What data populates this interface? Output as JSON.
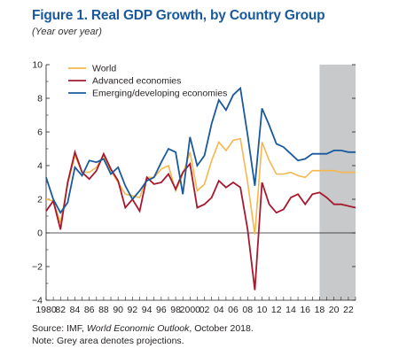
{
  "title": "Figure 1. Real GDP Growth, by Country Group",
  "subtitle": "(Year over year)",
  "source": {
    "prefix": "Source: IMF, ",
    "publication": "World Economic Outlook",
    "suffix": ", October 2018."
  },
  "note": "Note: Grey area denotes projections.",
  "colors": {
    "world": "#f5b74e",
    "advanced": "#a6192e",
    "emerging": "#1a5a9c",
    "projection": "#c8c9cb"
  },
  "chart_data": {
    "type": "line",
    "xlim": [
      1980,
      2023
    ],
    "ylim": [
      -4,
      10
    ],
    "yticks": [
      -4,
      -2,
      0,
      2,
      4,
      6,
      8,
      10
    ],
    "ytick_labels": [
      "−4",
      "−2",
      "0",
      "2",
      "4",
      "6",
      "8",
      "10"
    ],
    "xticks": [
      1980,
      1982,
      1984,
      1986,
      1988,
      1990,
      1992,
      1994,
      1996,
      1998,
      2000,
      2002,
      2004,
      2006,
      2008,
      2010,
      2012,
      2014,
      2016,
      2018,
      2020,
      2022
    ],
    "xtick_labels": [
      "1980",
      "82",
      "84",
      "86",
      "88",
      "90",
      "92",
      "94",
      "96",
      "98",
      "2000",
      "02",
      "04",
      "06",
      "08",
      "10",
      "12",
      "14",
      "16",
      "18",
      "20",
      "22"
    ],
    "projection_start": 2018,
    "legend_position": "top-left",
    "x": [
      1980,
      1981,
      1982,
      1983,
      1984,
      1985,
      1986,
      1987,
      1988,
      1989,
      1990,
      1991,
      1992,
      1993,
      1994,
      1995,
      1996,
      1997,
      1998,
      1999,
      2000,
      2001,
      2002,
      2003,
      2004,
      2005,
      2006,
      2007,
      2008,
      2009,
      2010,
      2011,
      2012,
      2013,
      2014,
      2015,
      2016,
      2017,
      2018,
      2019,
      2020,
      2021,
      2022,
      2023
    ],
    "series": [
      {
        "name": "World",
        "key": "world",
        "values": [
          2.0,
          1.9,
          0.6,
          2.9,
          4.6,
          3.6,
          3.6,
          3.9,
          4.6,
          3.7,
          3.0,
          2.3,
          2.2,
          2.1,
          3.3,
          3.3,
          3.8,
          4.0,
          2.5,
          3.5,
          4.8,
          2.5,
          2.9,
          4.3,
          5.4,
          4.9,
          5.5,
          5.6,
          3.0,
          -0.1,
          5.4,
          4.3,
          3.5,
          3.5,
          3.6,
          3.4,
          3.3,
          3.7,
          3.7,
          3.7,
          3.7,
          3.6,
          3.6,
          3.6
        ]
      },
      {
        "name": "Advanced economies",
        "key": "advanced",
        "values": [
          1.3,
          1.9,
          0.2,
          3.0,
          4.8,
          3.6,
          3.2,
          3.7,
          4.7,
          3.8,
          3.1,
          1.5,
          2.0,
          1.3,
          3.3,
          2.9,
          3.0,
          3.5,
          2.6,
          3.6,
          4.1,
          1.5,
          1.7,
          2.1,
          3.1,
          2.7,
          3.0,
          2.7,
          0.2,
          -3.4,
          3.0,
          1.7,
          1.2,
          1.4,
          2.1,
          2.3,
          1.7,
          2.3,
          2.4,
          2.1,
          1.7,
          1.7,
          1.6,
          1.5
        ]
      },
      {
        "name": "Emerging/developing economies",
        "key": "emerging",
        "values": [
          3.3,
          2.0,
          1.2,
          1.8,
          3.9,
          3.4,
          4.3,
          4.2,
          4.4,
          3.5,
          3.9,
          2.8,
          2.0,
          2.5,
          3.1,
          3.3,
          4.2,
          5.0,
          4.8,
          2.3,
          5.7,
          4.0,
          4.6,
          6.5,
          7.9,
          7.3,
          8.2,
          8.6,
          5.8,
          2.8,
          7.4,
          6.4,
          5.3,
          5.1,
          4.7,
          4.3,
          4.4,
          4.7,
          4.7,
          4.7,
          4.9,
          4.9,
          4.8,
          4.8
        ]
      }
    ]
  }
}
